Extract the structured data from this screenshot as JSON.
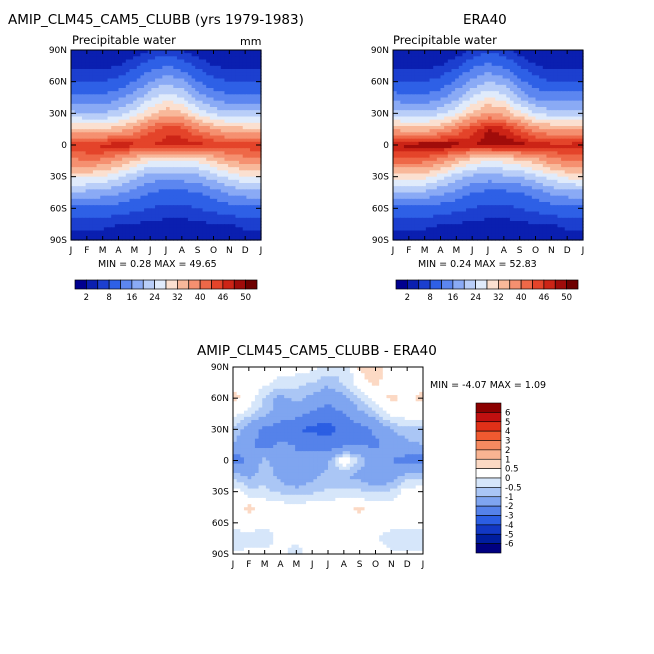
{
  "panels": [
    {
      "title": "AMIP_CLM45_CAM5_CLUBB (yrs 1979-1983)",
      "subtitle": "Precipitable water",
      "units": "mm",
      "stats": "MIN =    0.28  MAX =   49.65"
    },
    {
      "title": "ERA40",
      "subtitle": "Precipitable water",
      "units": "",
      "stats": "MIN =    0.24  MAX =   52.83"
    },
    {
      "title": "AMIP_CLM45_CAM5_CLUBB - ERA40",
      "subtitle": "",
      "units": "",
      "stats": "MIN =   -4.07  MAX =    1.09"
    }
  ],
  "colorbar_top": {
    "labels": [
      "2",
      "8",
      "16",
      "24",
      "32",
      "40",
      "46",
      "50"
    ],
    "colors": [
      "#00008f",
      "#0a1fb0",
      "#1c3fcf",
      "#2e60e6",
      "#5c86f0",
      "#8aaaf5",
      "#b9cef8",
      "#e0ebfb",
      "#fbe0d0",
      "#f8b89a",
      "#f59070",
      "#ee6848",
      "#e4442a",
      "#cc2416",
      "#a00c0a",
      "#6e0000"
    ]
  },
  "colorbar_diff": {
    "labels": [
      "6",
      "5",
      "4",
      "3",
      "2",
      "1",
      "0.5",
      "0",
      "-0.5",
      "-1",
      "-2",
      "-3",
      "-4",
      "-5",
      "-6"
    ],
    "colors": [
      "#8b0000",
      "#c01010",
      "#e03018",
      "#f05a30",
      "#f68a60",
      "#f9b492",
      "#fcd9c4",
      "#ffffff",
      "#d6e6fa",
      "#aac6f5",
      "#7fa5f0",
      "#5582ea",
      "#2b5ee3",
      "#1238c4",
      "#001d9e",
      "#000080"
    ]
  },
  "chart_data": [
    {
      "type": "heatmap",
      "title": "AMIP_CLM45_CAM5_CLUBB (yrs 1979-1983)",
      "subtitle": "Precipitable water",
      "units": "mm",
      "x_ticks": [
        "J",
        "F",
        "M",
        "A",
        "M",
        "J",
        "J",
        "A",
        "S",
        "O",
        "N",
        "D",
        "J"
      ],
      "y_ticks": [
        "90N",
        "60N",
        "30N",
        "0",
        "30S",
        "60S",
        "90S"
      ],
      "ylim": [
        -90,
        90
      ],
      "latitudes": [
        90,
        75,
        60,
        45,
        30,
        15,
        0,
        -15,
        -30,
        -45,
        -60,
        -75,
        -90
      ],
      "months": [
        1,
        2,
        3,
        4,
        5,
        6,
        7,
        8,
        9,
        10,
        11,
        12,
        13
      ],
      "min": 0.28,
      "max": 49.65,
      "values": [
        [
          2,
          2,
          2,
          2,
          3,
          5,
          6,
          5,
          3,
          2,
          2,
          2,
          2
        ],
        [
          4,
          4,
          4,
          5,
          7,
          10,
          12,
          10,
          7,
          5,
          4,
          4,
          4
        ],
        [
          8,
          8,
          8,
          9,
          12,
          16,
          19,
          17,
          12,
          9,
          8,
          8,
          8
        ],
        [
          13,
          13,
          13,
          15,
          18,
          23,
          26,
          24,
          18,
          15,
          13,
          13,
          13
        ],
        [
          21,
          20,
          20,
          22,
          26,
          31,
          35,
          33,
          27,
          23,
          21,
          21,
          21
        ],
        [
          33,
          32,
          32,
          34,
          37,
          42,
          45,
          44,
          40,
          36,
          34,
          33,
          33
        ],
        [
          45,
          46,
          47,
          48,
          47,
          46,
          47,
          48,
          47,
          46,
          45,
          45,
          45
        ],
        [
          39,
          40,
          39,
          36,
          32,
          28,
          27,
          28,
          29,
          32,
          36,
          38,
          39
        ],
        [
          29,
          29,
          28,
          25,
          21,
          18,
          17,
          18,
          19,
          22,
          25,
          28,
          29
        ],
        [
          19,
          19,
          18,
          17,
          14,
          12,
          11,
          11,
          12,
          14,
          17,
          18,
          19
        ],
        [
          11,
          11,
          11,
          10,
          9,
          8,
          7,
          7,
          8,
          9,
          10,
          11,
          11
        ],
        [
          6,
          6,
          6,
          5,
          5,
          4,
          4,
          4,
          4,
          5,
          5,
          6,
          6
        ],
        [
          3,
          3,
          3,
          2,
          2,
          2,
          2,
          2,
          2,
          2,
          2,
          3,
          3
        ]
      ]
    },
    {
      "type": "heatmap",
      "title": "ERA40",
      "subtitle": "Precipitable water",
      "x_ticks": [
        "J",
        "F",
        "M",
        "A",
        "M",
        "J",
        "J",
        "A",
        "S",
        "O",
        "N",
        "D",
        "J"
      ],
      "y_ticks": [
        "90N",
        "60N",
        "30N",
        "0",
        "30S",
        "60S",
        "90S"
      ],
      "ylim": [
        -90,
        90
      ],
      "latitudes": [
        90,
        75,
        60,
        45,
        30,
        15,
        0,
        -15,
        -30,
        -45,
        -60,
        -75,
        -90
      ],
      "months": [
        1,
        2,
        3,
        4,
        5,
        6,
        7,
        8,
        9,
        10,
        11,
        12,
        13
      ],
      "min": 0.24,
      "max": 52.83,
      "values": [
        [
          2,
          2,
          2,
          2,
          3,
          5,
          7,
          6,
          3,
          2,
          2,
          2,
          2
        ],
        [
          4,
          4,
          4,
          5,
          7,
          11,
          13,
          11,
          8,
          5,
          4,
          4,
          4
        ],
        [
          8,
          8,
          8,
          9,
          13,
          17,
          20,
          18,
          13,
          10,
          8,
          8,
          8
        ],
        [
          14,
          13,
          13,
          15,
          19,
          24,
          28,
          26,
          19,
          15,
          14,
          14,
          14
        ],
        [
          22,
          21,
          21,
          23,
          27,
          33,
          37,
          35,
          29,
          24,
          22,
          22,
          22
        ],
        [
          35,
          34,
          34,
          36,
          40,
          45,
          48,
          47,
          43,
          38,
          36,
          35,
          35
        ],
        [
          48,
          49,
          50,
          50,
          49,
          48,
          49,
          50,
          49,
          48,
          47,
          47,
          48
        ],
        [
          41,
          42,
          41,
          38,
          34,
          30,
          28,
          29,
          31,
          34,
          38,
          40,
          41
        ],
        [
          30,
          30,
          29,
          26,
          22,
          19,
          18,
          19,
          20,
          23,
          26,
          29,
          30
        ],
        [
          19,
          19,
          19,
          17,
          15,
          12,
          11,
          11,
          12,
          14,
          17,
          18,
          19
        ],
        [
          11,
          11,
          11,
          10,
          9,
          8,
          7,
          7,
          8,
          9,
          10,
          11,
          11
        ],
        [
          6,
          6,
          6,
          5,
          5,
          4,
          4,
          4,
          4,
          5,
          5,
          6,
          6
        ],
        [
          3,
          3,
          3,
          2,
          2,
          2,
          2,
          2,
          2,
          2,
          2,
          3,
          3
        ]
      ]
    },
    {
      "type": "heatmap",
      "title": "AMIP_CLM45_CAM5_CLUBB - ERA40",
      "x_ticks": [
        "J",
        "F",
        "M",
        "A",
        "M",
        "J",
        "J",
        "A",
        "S",
        "O",
        "N",
        "D",
        "J"
      ],
      "y_ticks": [
        "90N",
        "60N",
        "30N",
        "0",
        "30S",
        "60S",
        "90S"
      ],
      "ylim": [
        -90,
        90
      ],
      "latitudes": [
        90,
        75,
        60,
        45,
        30,
        15,
        0,
        -15,
        -30,
        -45,
        -60,
        -75,
        -90
      ],
      "months": [
        1,
        2,
        3,
        4,
        5,
        6,
        7,
        8,
        9,
        10,
        11,
        12,
        13
      ],
      "min": -4.07,
      "max": 1.09,
      "values": [
        [
          0.2,
          0.2,
          0.1,
          0.2,
          0.3,
          0.2,
          -0.2,
          -0.5,
          0.6,
          0.8,
          0.3,
          0.2,
          0.2
        ],
        [
          0.4,
          0.3,
          0.2,
          -0.2,
          -0.3,
          -0.5,
          -0.8,
          -0.4,
          0.3,
          0.6,
          0.2,
          0.3,
          0.4
        ],
        [
          0.6,
          0.4,
          -0.6,
          -1.2,
          -0.8,
          -1.2,
          -1.6,
          -1.2,
          -0.4,
          0.3,
          0.6,
          0.4,
          0.6
        ],
        [
          0.3,
          -0.3,
          -0.8,
          -1.4,
          -1.6,
          -2.2,
          -2.6,
          -2.0,
          -1.2,
          -0.6,
          0.2,
          0.3,
          0.3
        ],
        [
          -0.6,
          -1.4,
          -2.2,
          -2.6,
          -3.0,
          -3.2,
          -3.4,
          -2.8,
          -2.4,
          -1.8,
          -1.0,
          -0.6,
          -0.6
        ],
        [
          -1.0,
          -1.8,
          -2.4,
          -1.8,
          -2.0,
          -2.4,
          -2.6,
          -2.2,
          -2.0,
          -2.2,
          -1.6,
          -1.2,
          -1.0
        ],
        [
          -2.6,
          -1.8,
          -0.8,
          -1.6,
          -2.0,
          -1.4,
          -1.2,
          0.6,
          -0.6,
          -1.6,
          -2.0,
          -2.4,
          -2.6
        ],
        [
          -0.6,
          -1.2,
          -0.6,
          -1.2,
          -1.6,
          -1.2,
          -0.8,
          -1.0,
          -1.2,
          -1.8,
          -1.4,
          -0.8,
          -0.6
        ],
        [
          0.3,
          -0.3,
          -0.4,
          -0.6,
          -0.8,
          -0.6,
          -0.4,
          -0.3,
          -0.4,
          -0.6,
          -0.4,
          0.3,
          0.3
        ],
        [
          0.3,
          0.6,
          0.4,
          0.3,
          0.2,
          0.4,
          0.3,
          0.4,
          0.6,
          0.3,
          0.2,
          0.4,
          0.3
        ],
        [
          0.2,
          0.3,
          0.2,
          0.1,
          0.2,
          0.3,
          0.2,
          0.2,
          0.3,
          0.4,
          0.2,
          0.2,
          0.2
        ],
        [
          -0.3,
          -0.2,
          -0.4,
          0.2,
          0.1,
          0.2,
          0.3,
          0.2,
          0.2,
          0.1,
          -0.3,
          -0.4,
          -0.3
        ],
        [
          0.1,
          0.1,
          0.2,
          0.1,
          -0.2,
          0.2,
          0.1,
          0.1,
          0.1,
          0.2,
          0.1,
          0.1,
          0.1
        ]
      ]
    }
  ]
}
